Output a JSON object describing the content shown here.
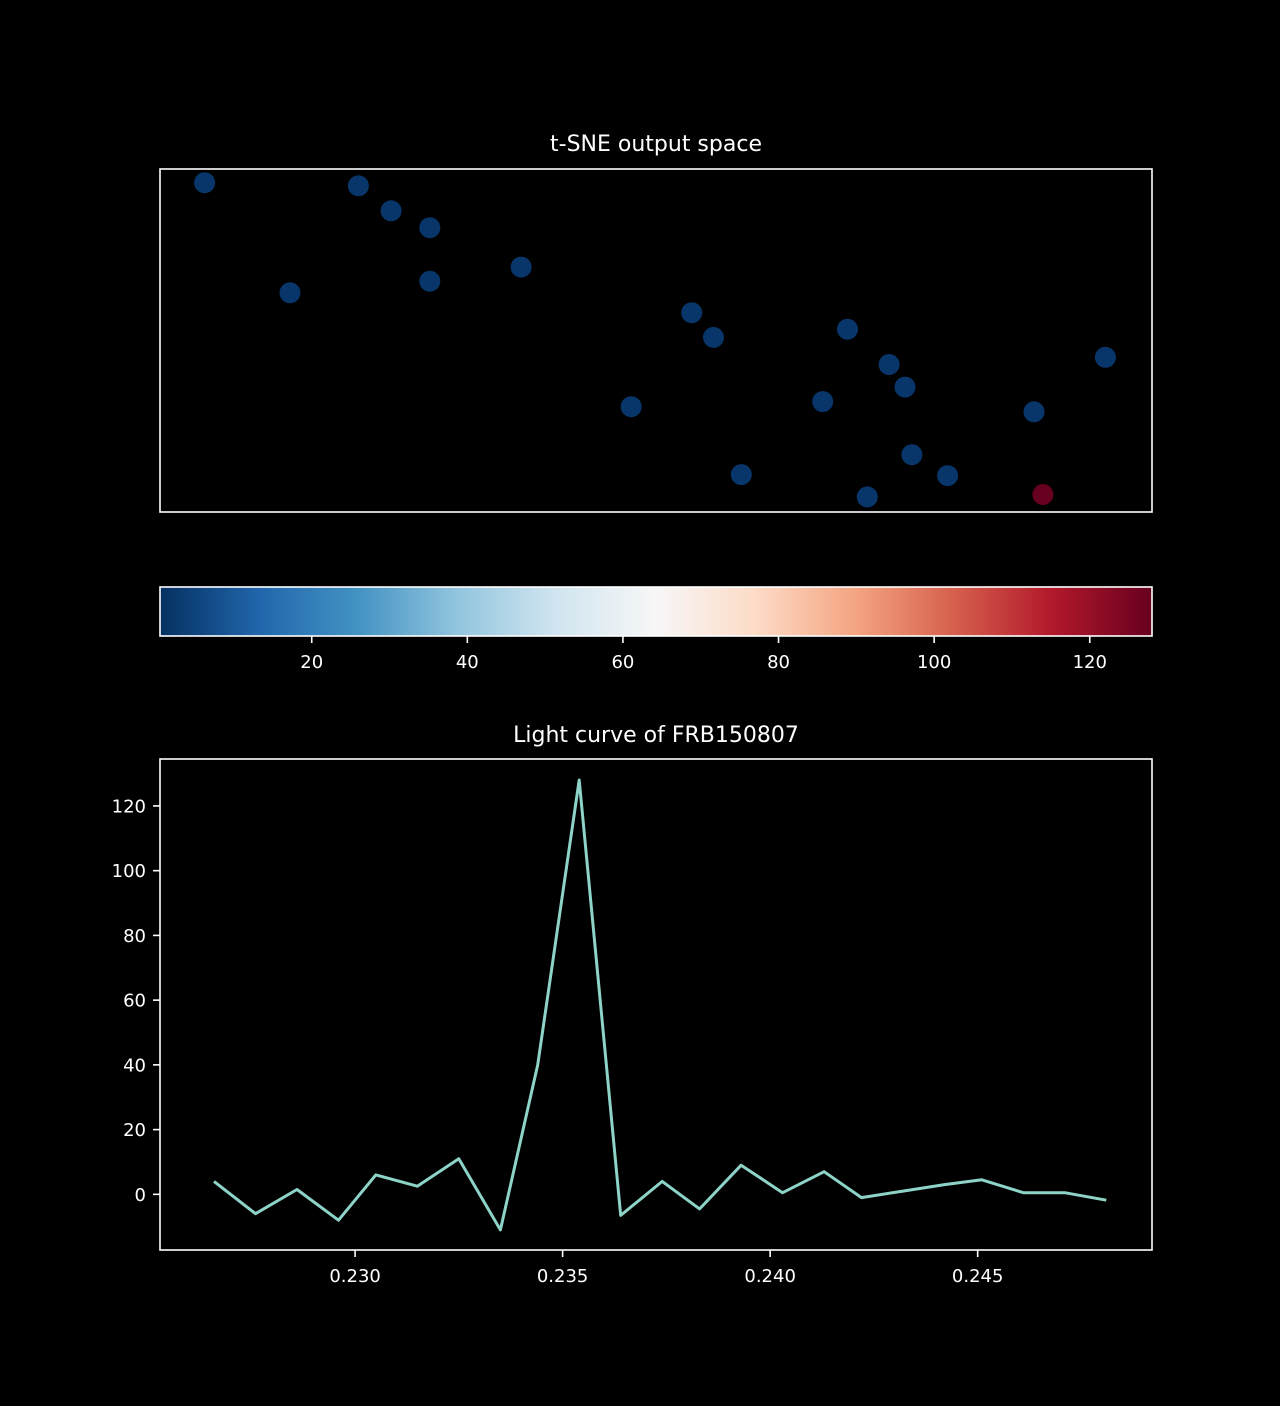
{
  "figure": {
    "background": "#000000",
    "foreground": "#ffffff"
  },
  "chart_data": [
    {
      "type": "scatter",
      "title": "t-SNE output space",
      "xlabel": "",
      "ylabel": "",
      "axes_ticks_visible": false,
      "grid": false,
      "xlim": [
        0,
        100
      ],
      "ylim": [
        0,
        100
      ],
      "color_scale_var": "value",
      "points": [
        {
          "x": 4.5,
          "y": 96.0,
          "value": 2
        },
        {
          "x": 13.1,
          "y": 63.9,
          "value": 2
        },
        {
          "x": 20.0,
          "y": 95.1,
          "value": 2
        },
        {
          "x": 23.3,
          "y": 87.8,
          "value": 2
        },
        {
          "x": 27.2,
          "y": 82.9,
          "value": 2
        },
        {
          "x": 27.2,
          "y": 67.3,
          "value": 2
        },
        {
          "x": 36.4,
          "y": 71.4,
          "value": 2
        },
        {
          "x": 47.5,
          "y": 30.7,
          "value": 2
        },
        {
          "x": 53.6,
          "y": 58.1,
          "value": 2
        },
        {
          "x": 55.8,
          "y": 50.9,
          "value": 2
        },
        {
          "x": 58.6,
          "y": 10.9,
          "value": 2
        },
        {
          "x": 66.8,
          "y": 32.2,
          "value": 2
        },
        {
          "x": 69.3,
          "y": 53.3,
          "value": 2
        },
        {
          "x": 71.3,
          "y": 4.4,
          "value": 2
        },
        {
          "x": 73.5,
          "y": 43.0,
          "value": 2
        },
        {
          "x": 75.1,
          "y": 36.4,
          "value": 2
        },
        {
          "x": 75.8,
          "y": 16.7,
          "value": 2
        },
        {
          "x": 79.4,
          "y": 10.6,
          "value": 2
        },
        {
          "x": 88.1,
          "y": 29.2,
          "value": 2
        },
        {
          "x": 89.0,
          "y": 5.1,
          "value": 128
        },
        {
          "x": 95.3,
          "y": 45.1,
          "value": 2
        }
      ]
    },
    {
      "type": "colorbar",
      "colormap": "RdBu_r",
      "range": [
        0.5,
        128
      ],
      "ticks": [
        20,
        40,
        60,
        80,
        100,
        120
      ],
      "tick_labels": [
        "20",
        "40",
        "60",
        "80",
        "100",
        "120"
      ],
      "stops": [
        "#053061",
        "#2166ac",
        "#4393c3",
        "#92c5de",
        "#d1e5f0",
        "#f7f7f7",
        "#fddbc7",
        "#f4a582",
        "#d6604d",
        "#b2182b",
        "#67001f"
      ]
    },
    {
      "type": "line",
      "title": "Light curve of FRB150807",
      "xlabel": "",
      "ylabel": "",
      "grid": false,
      "xlim": [
        0.2253,
        0.2492
      ],
      "ylim": [
        -17.2,
        134.5
      ],
      "xticks": [
        0.23,
        0.235,
        0.24,
        0.245
      ],
      "xtick_labels": [
        "0.230",
        "0.235",
        "0.240",
        "0.245"
      ],
      "yticks": [
        0,
        20,
        40,
        60,
        80,
        100,
        120
      ],
      "ytick_labels": [
        "0",
        "20",
        "40",
        "60",
        "80",
        "100",
        "120"
      ],
      "line_color": "#8dd3c7",
      "series": [
        {
          "x": [
            0.2266,
            0.2276,
            0.2286,
            0.2296,
            0.2305,
            0.2315,
            0.2325,
            0.2335,
            0.2344,
            0.2354,
            0.2364,
            0.2374,
            0.2383,
            0.2393,
            0.2403,
            0.2413,
            0.2422,
            0.2432,
            0.2442,
            0.2451,
            0.2461,
            0.2471,
            0.2481
          ],
          "y": [
            4,
            -6,
            1.5,
            -8,
            6,
            2.5,
            11,
            -11,
            40,
            128,
            -6.5,
            4,
            -4.5,
            9,
            0.5,
            7,
            -1,
            1,
            3,
            4.5,
            0.5,
            0.5,
            -1.8
          ]
        }
      ]
    }
  ]
}
